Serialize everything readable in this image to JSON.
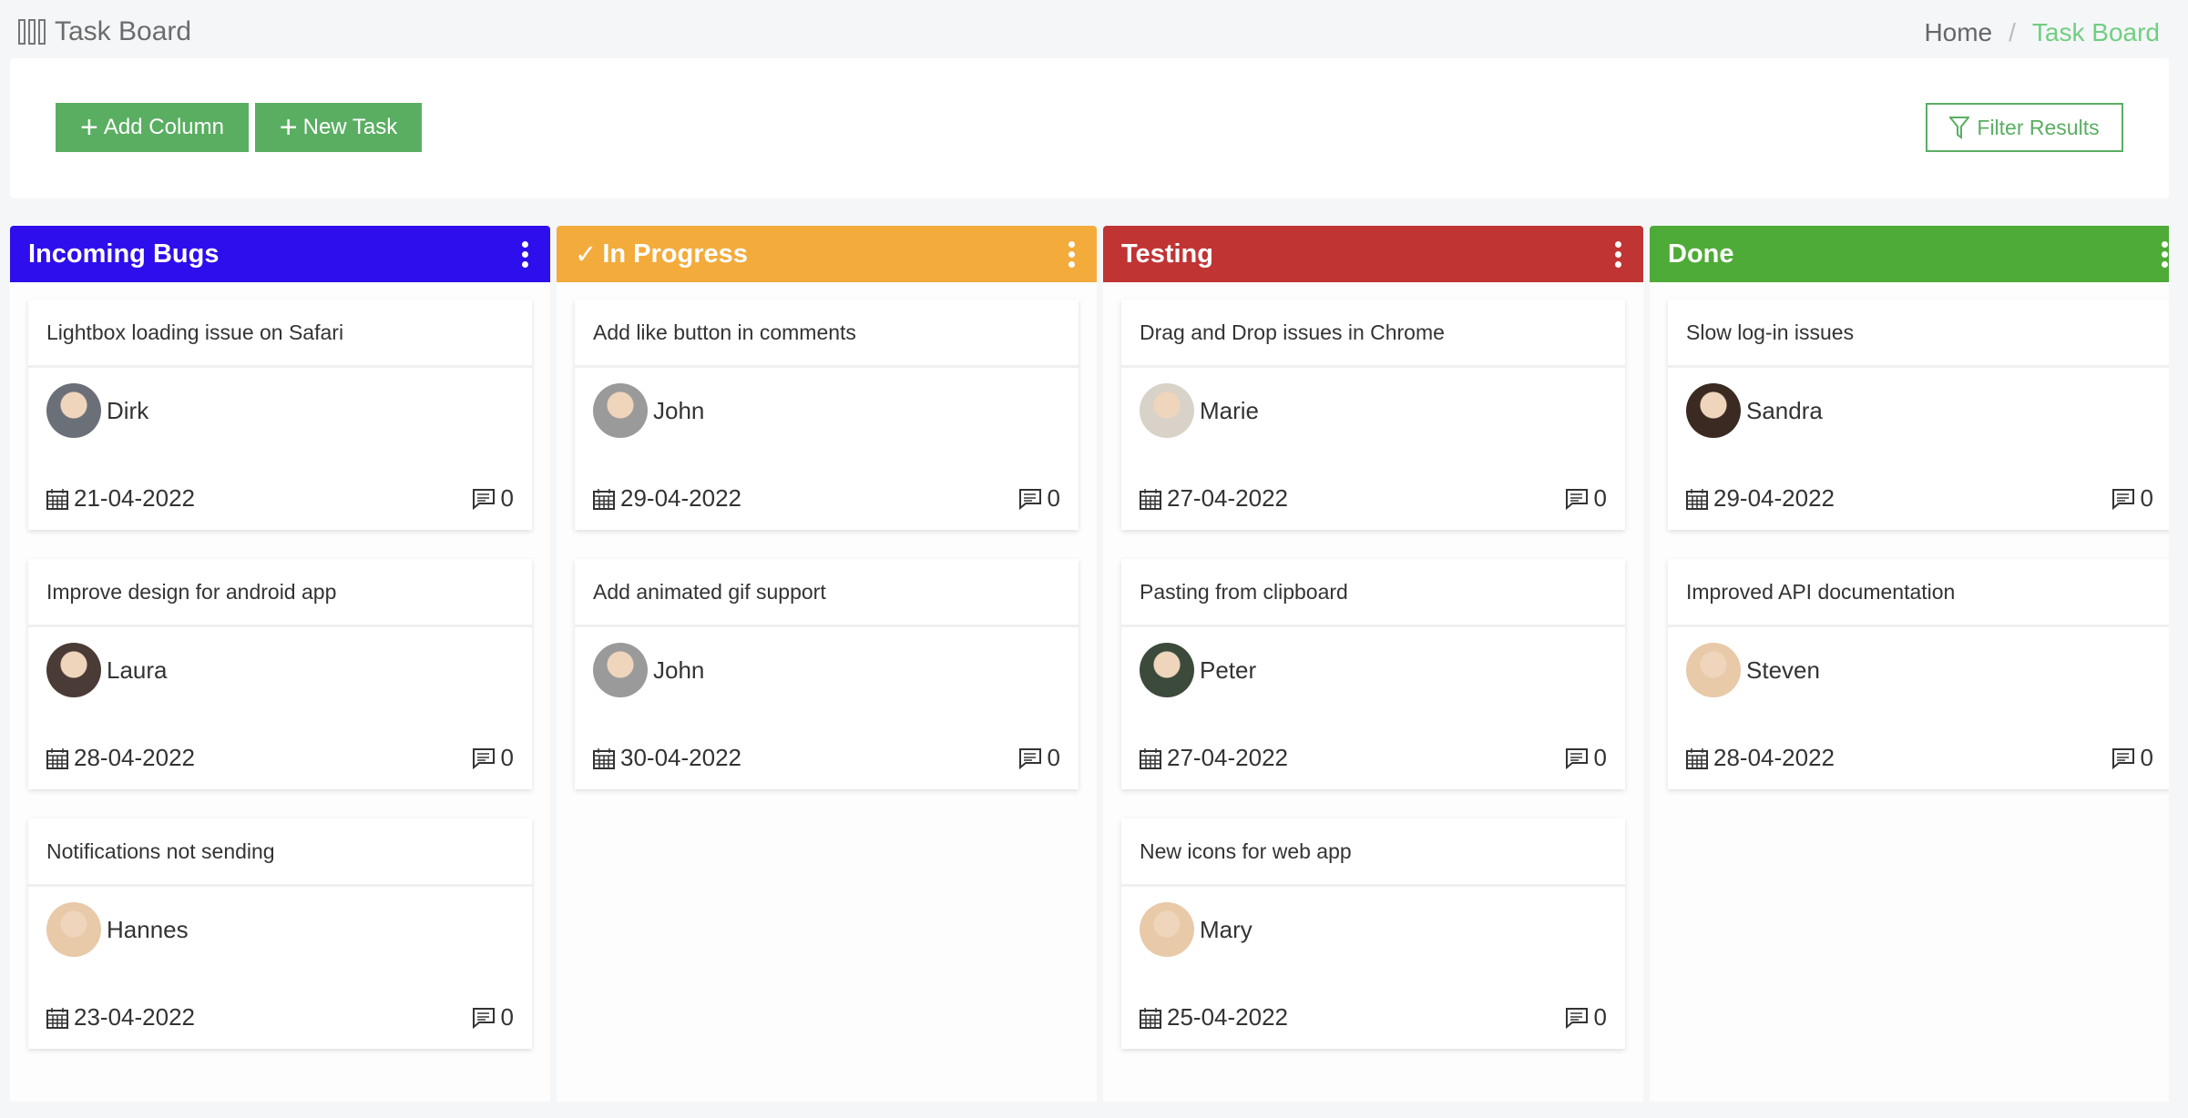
{
  "header": {
    "title": "Task Board",
    "icon": "columns-icon"
  },
  "breadcrumb": {
    "home": "Home",
    "separator": "/",
    "current": "Task Board"
  },
  "toolbar": {
    "add_column": "Add Column",
    "new_task": "New Task",
    "filter": "Filter Results"
  },
  "colors": {
    "button": "#5aae62",
    "breadcrumb_active": "#6fcf80"
  },
  "columns": [
    {
      "title": "Incoming Bugs",
      "color": "#2e0eec",
      "icon": "",
      "cards": [
        {
          "title": "Lightbox loading issue on Safari",
          "assignee": "Dirk",
          "date": "21-04-2022",
          "comments": "0",
          "avatar": "#6b6f78"
        },
        {
          "title": "Improve design for android app",
          "assignee": "Laura",
          "date": "28-04-2022",
          "comments": "0",
          "avatar": "#4a3b36"
        },
        {
          "title": "Notifications not sending",
          "assignee": "Hannes",
          "date": "23-04-2022",
          "comments": "0",
          "avatar": "#e8c9a8"
        }
      ]
    },
    {
      "title": "In Progress",
      "color": "#f3ab3c",
      "icon": "✓",
      "cards": [
        {
          "title": "Add like button in comments",
          "assignee": "John",
          "date": "29-04-2022",
          "comments": "0",
          "avatar": "#9a9a9a"
        },
        {
          "title": "Add animated gif support",
          "assignee": "John",
          "date": "30-04-2022",
          "comments": "0",
          "avatar": "#9a9a9a"
        }
      ]
    },
    {
      "title": "Testing",
      "color": "#c03434",
      "icon": "",
      "cards": [
        {
          "title": "Drag and Drop issues in Chrome",
          "assignee": "Marie",
          "date": "27-04-2022",
          "comments": "0",
          "avatar": "#d8d2c8"
        },
        {
          "title": "Pasting from clipboard",
          "assignee": "Peter",
          "date": "27-04-2022",
          "comments": "0",
          "avatar": "#3b4a3a"
        },
        {
          "title": "New icons for web app",
          "assignee": "Mary",
          "date": "25-04-2022",
          "comments": "0",
          "avatar": "#e8c9a8"
        }
      ]
    },
    {
      "title": "Done",
      "color": "#4fab37",
      "icon": "",
      "cards": [
        {
          "title": "Slow log-in issues",
          "assignee": "Sandra",
          "date": "29-04-2022",
          "comments": "0",
          "avatar": "#3a2a22"
        },
        {
          "title": "Improved API documentation",
          "assignee": "Steven",
          "date": "28-04-2022",
          "comments": "0",
          "avatar": "#e8c9a8"
        }
      ]
    }
  ]
}
